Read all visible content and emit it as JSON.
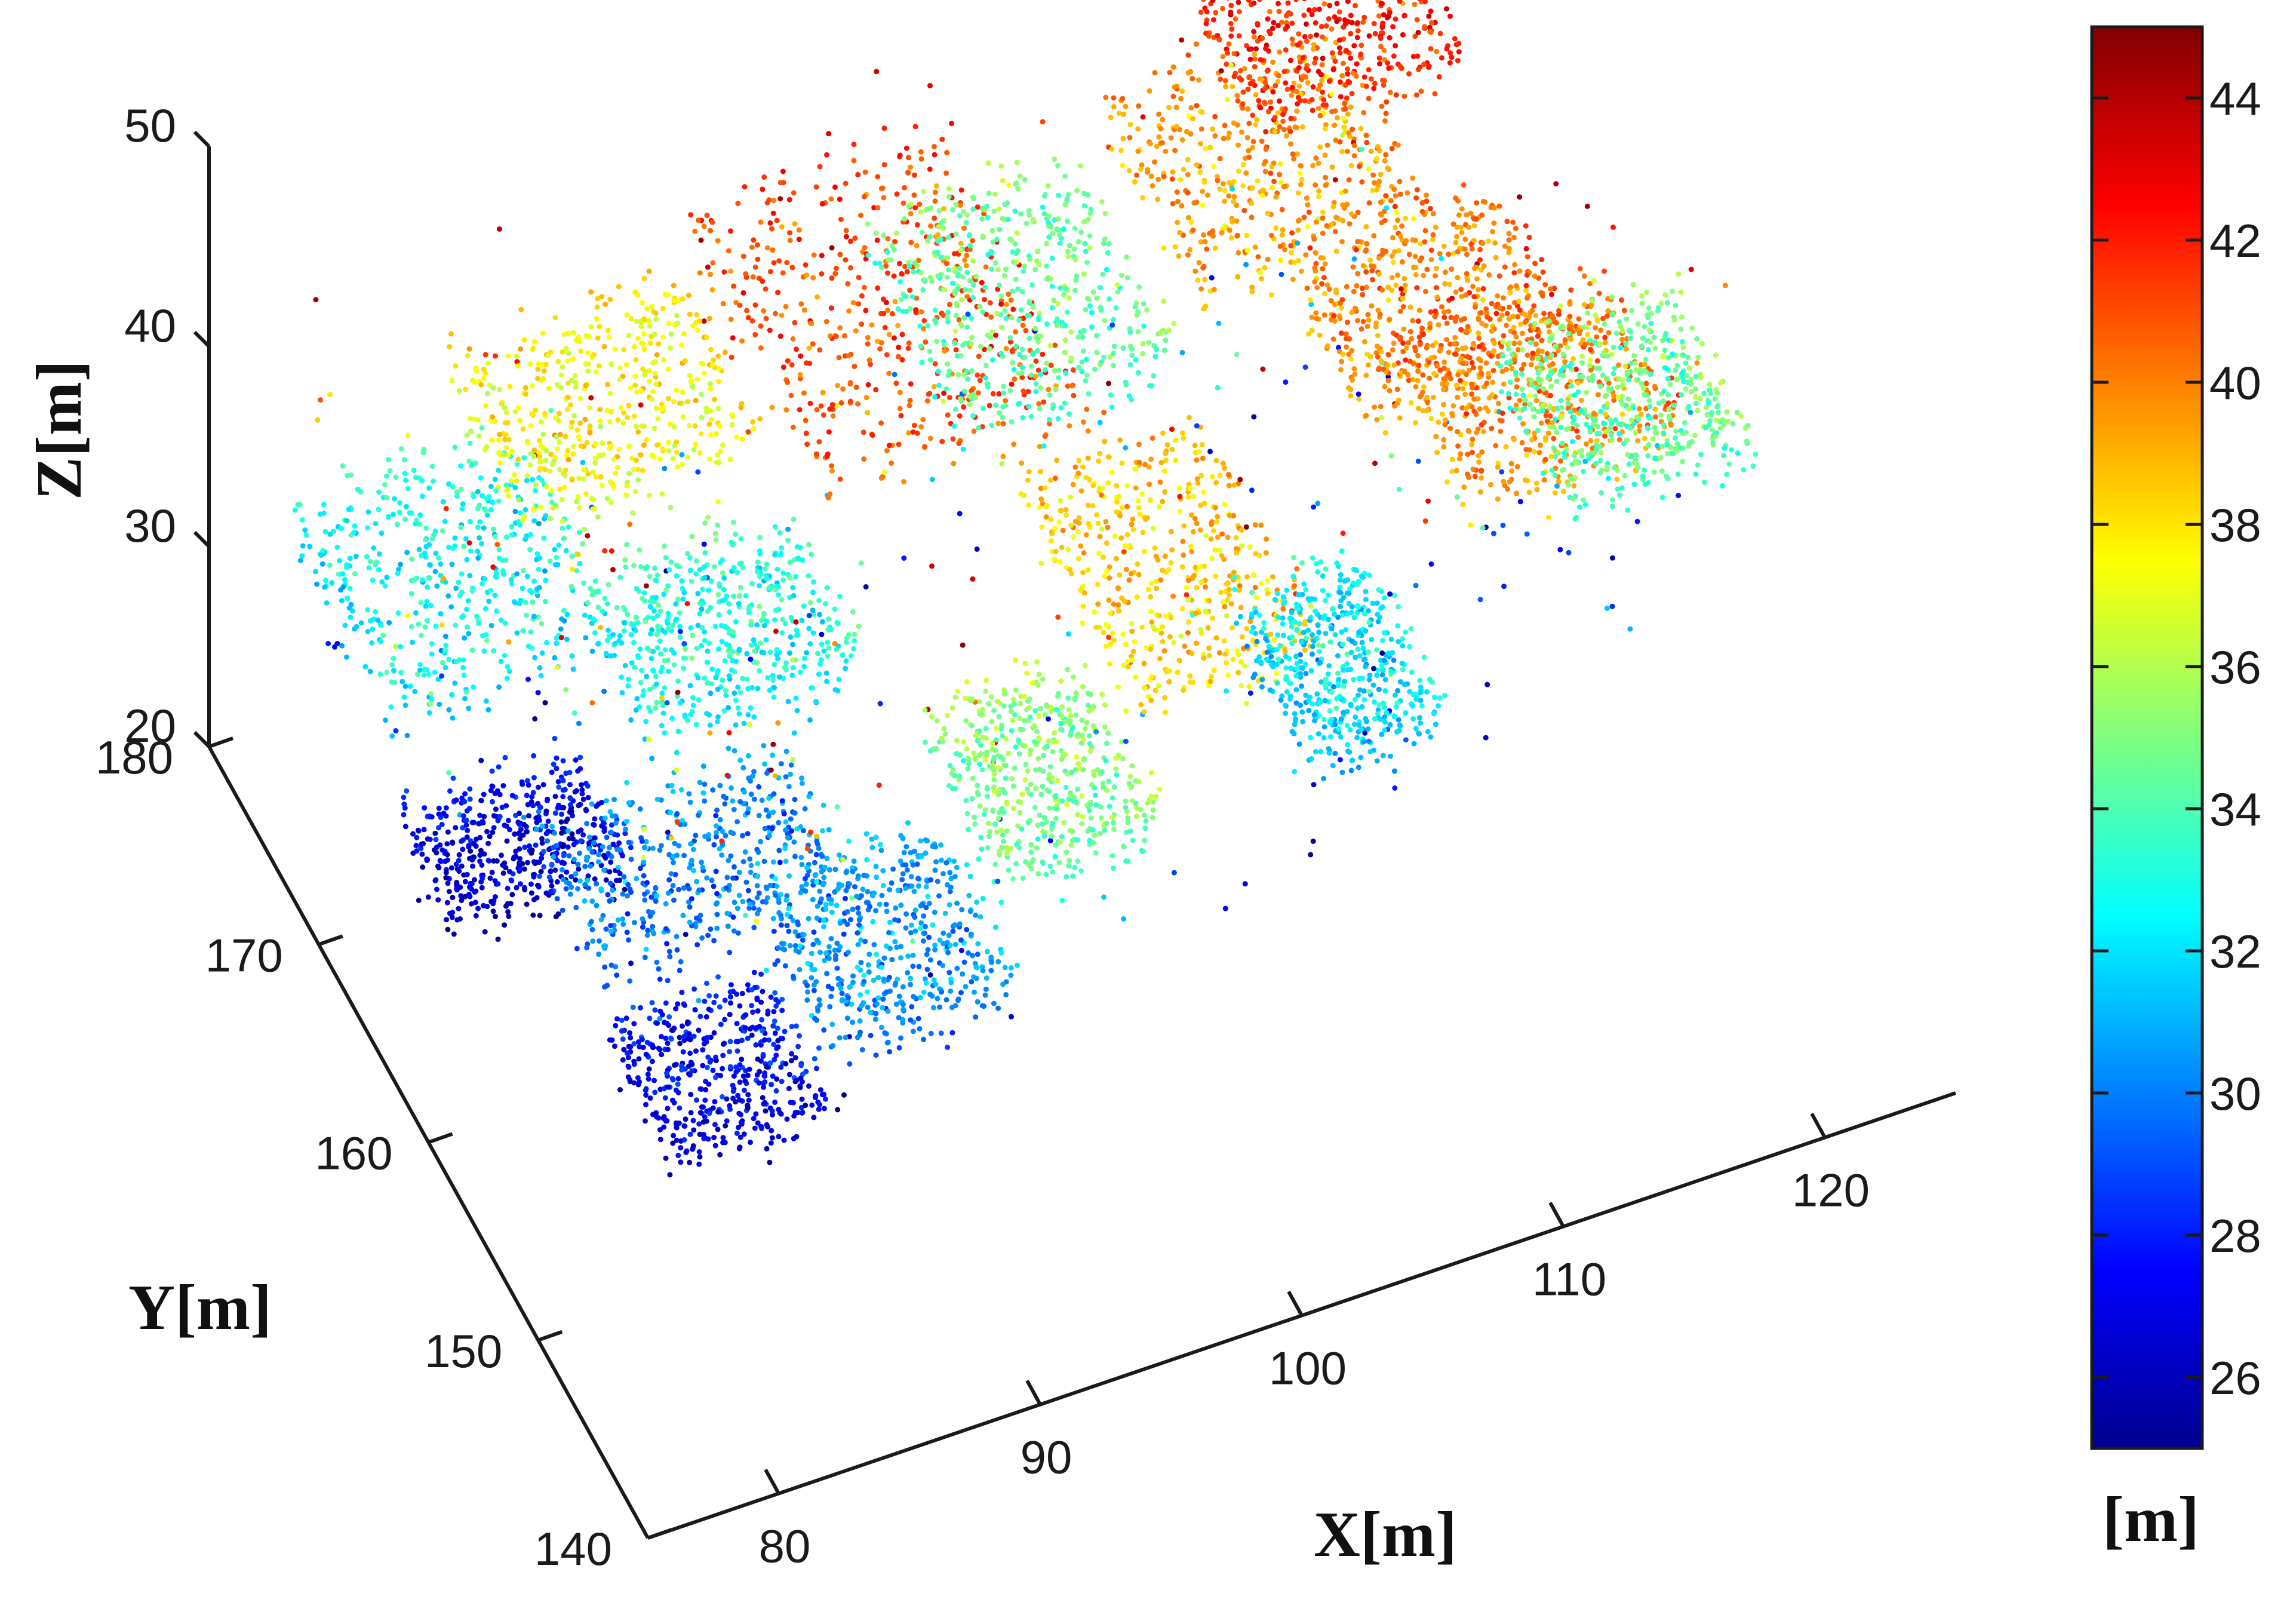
{
  "chart_data": {
    "type": "scatter",
    "subtype": "3d-point-cloud",
    "title": "",
    "xlabel": "X[m]",
    "ylabel": "Y[m]",
    "zlabel": "Z[m]",
    "xlim": [
      75,
      125
    ],
    "ylim": [
      140,
      180
    ],
    "zlim": [
      20,
      50
    ],
    "x_ticks": [
      "80",
      "90",
      "100",
      "110",
      "120"
    ],
    "y_ticks": [
      "140",
      "150",
      "160",
      "170",
      "180"
    ],
    "z_ticks": [
      "20",
      "30",
      "40",
      "50"
    ],
    "colorbar": {
      "label": "[m]",
      "range": [
        25,
        45
      ],
      "ticks": [
        "26",
        "28",
        "30",
        "32",
        "34",
        "36",
        "38",
        "40",
        "42",
        "44"
      ],
      "colormap": "jet"
    },
    "grid": false,
    "clusters": [
      {
        "x": [
          77,
          86
        ],
        "y": [
          168,
          178
        ],
        "z_mean": 32.5
      },
      {
        "x": [
          77,
          84
        ],
        "y": [
          163,
          168
        ],
        "z_mean": 27
      },
      {
        "x": [
          83,
          92
        ],
        "y": [
          170,
          178
        ],
        "z_mean": 37.5
      },
      {
        "x": [
          85,
          93
        ],
        "y": [
          163,
          170
        ],
        "z_mean": 33
      },
      {
        "x": [
          80,
          90
        ],
        "y": [
          156,
          163
        ],
        "z_mean": 30
      },
      {
        "x": [
          80,
          86
        ],
        "y": [
          149,
          156
        ],
        "z_mean": 27.5
      },
      {
        "x": [
          86,
          93
        ],
        "y": [
          149,
          157
        ],
        "z_mean": 30.5
      },
      {
        "x": [
          93,
          99
        ],
        "y": [
          150,
          158
        ],
        "z_mean": 35
      },
      {
        "x": [
          92,
          102
        ],
        "y": [
          164,
          178
        ],
        "z_mean": 41
      },
      {
        "x": [
          99,
          106
        ],
        "y": [
          152,
          164
        ],
        "z_mean": 38.5
      },
      {
        "x": [
          106,
          111
        ],
        "y": [
          153,
          161
        ],
        "z_mean": 32
      },
      {
        "x": [
          100,
          108
        ],
        "y": [
          170,
          180
        ],
        "z_mean": 34.5
      },
      {
        "x": [
          108,
          117
        ],
        "y": [
          168,
          178
        ],
        "z_mean": 39.5
      },
      {
        "x": [
          112,
          120
        ],
        "y": [
          172,
          180
        ],
        "z_mean": 42
      },
      {
        "x": [
          111,
          119
        ],
        "y": [
          160,
          168
        ],
        "z_mean": 40
      },
      {
        "x": [
          113,
          121
        ],
        "y": [
          155,
          163
        ],
        "z_mean": 40
      },
      {
        "x": [
          118,
          125
        ],
        "y": [
          158,
          166
        ],
        "z_mean": 34.5
      }
    ]
  },
  "colors": {
    "axis": "#1a1a1a",
    "background": "#ffffff"
  }
}
